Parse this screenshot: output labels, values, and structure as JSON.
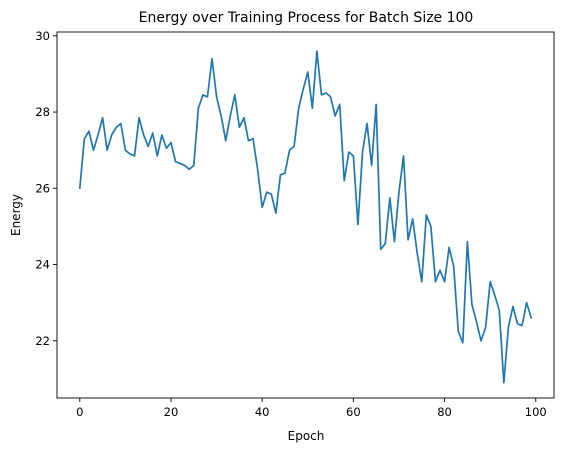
{
  "chart_data": {
    "type": "line",
    "title": "Energy over Training Process for Batch Size 100",
    "xlabel": "Epoch",
    "ylabel": "Energy",
    "xlim": [
      -5,
      104
    ],
    "ylim": [
      20.5,
      30.1
    ],
    "xticks": [
      0,
      20,
      40,
      60,
      80,
      100
    ],
    "yticks": [
      22,
      24,
      26,
      28,
      30
    ],
    "grid": false,
    "series_color": "#1f77b4",
    "series": [
      {
        "x": [
          0,
          1,
          2,
          3,
          4,
          5,
          6,
          7,
          8,
          9,
          10,
          11,
          12,
          13,
          14,
          15,
          16,
          17,
          18,
          19,
          20,
          21,
          22,
          23,
          24,
          25,
          26,
          27,
          28,
          29,
          30,
          31,
          32,
          33,
          34,
          35,
          36,
          37,
          38,
          39,
          40,
          41,
          42,
          43,
          44,
          45,
          46,
          47,
          48,
          49,
          50,
          51,
          52,
          53,
          54,
          55,
          56,
          57,
          58,
          59,
          60,
          61,
          62,
          63,
          64,
          65,
          66,
          67,
          68,
          69,
          70,
          71,
          72,
          73,
          74,
          75,
          76,
          77,
          78,
          79,
          80,
          81,
          82,
          83,
          84,
          85,
          86,
          87,
          88,
          89,
          90,
          91,
          92,
          93,
          94,
          95,
          96,
          97,
          98,
          99
        ],
        "values": [
          26.0,
          27.3,
          27.5,
          27.0,
          27.4,
          27.85,
          27.0,
          27.4,
          27.6,
          27.7,
          27.0,
          26.9,
          26.85,
          27.85,
          27.4,
          27.1,
          27.45,
          26.85,
          27.4,
          27.05,
          27.2,
          26.7,
          26.65,
          26.6,
          26.5,
          26.6,
          28.1,
          28.45,
          28.4,
          29.4,
          28.4,
          27.9,
          27.25,
          27.9,
          28.45,
          27.6,
          27.85,
          27.25,
          27.3,
          26.5,
          25.5,
          25.9,
          25.85,
          25.35,
          26.35,
          26.4,
          27.0,
          27.1,
          28.1,
          28.6,
          29.05,
          28.1,
          29.6,
          28.45,
          28.5,
          28.4,
          27.9,
          28.2,
          26.2,
          26.95,
          26.85,
          25.05,
          26.95,
          27.7,
          26.6,
          28.2,
          24.4,
          24.55,
          25.75,
          24.6,
          25.9,
          26.85,
          24.65,
          25.2,
          24.3,
          23.55,
          25.3,
          25.0,
          23.55,
          23.85,
          23.55,
          24.45,
          23.95,
          22.25,
          21.95,
          24.6,
          22.95,
          22.5,
          22.0,
          22.35,
          23.55,
          23.2,
          22.8,
          20.9,
          22.35,
          22.9,
          22.45,
          22.4,
          23.0,
          22.6
        ]
      }
    ]
  }
}
